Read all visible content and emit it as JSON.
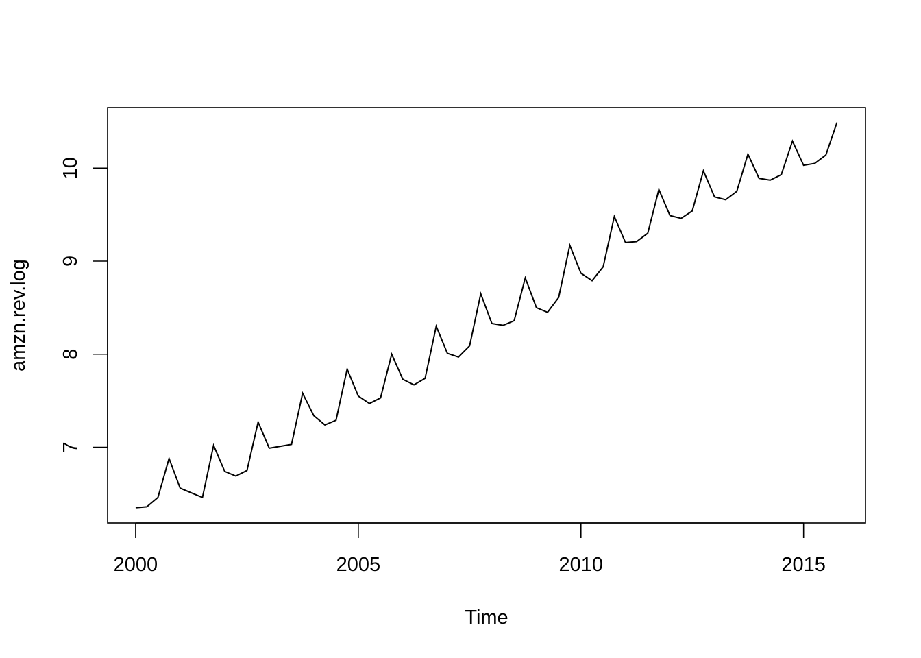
{
  "chart_data": {
    "type": "line",
    "title": "",
    "xlabel": "Time",
    "ylabel": "amzn.rev.log",
    "xlim": [
      1999.37,
      2016.39
    ],
    "ylim": [
      6.186,
      10.65
    ],
    "grid": false,
    "x_ticks": [
      2000,
      2005,
      2010,
      2015
    ],
    "x_tick_labels": [
      "2000",
      "2005",
      "2010",
      "2015"
    ],
    "y_ticks": [
      7,
      8,
      9,
      10
    ],
    "y_tick_labels": [
      "7",
      "8",
      "9",
      "10"
    ],
    "series": [
      {
        "line_color": "#000000",
        "x": [
          2000.0,
          2000.25,
          2000.5,
          2000.75,
          2001.0,
          2001.25,
          2001.5,
          2001.75,
          2002.0,
          2002.25,
          2002.5,
          2002.75,
          2003.0,
          2003.25,
          2003.5,
          2003.75,
          2004.0,
          2004.25,
          2004.5,
          2004.75,
          2005.0,
          2005.25,
          2005.5,
          2005.75,
          2006.0,
          2006.25,
          2006.5,
          2006.75,
          2007.0,
          2007.25,
          2007.5,
          2007.75,
          2008.0,
          2008.25,
          2008.5,
          2008.75,
          2009.0,
          2009.25,
          2009.5,
          2009.75,
          2010.0,
          2010.25,
          2010.5,
          2010.75,
          2011.0,
          2011.25,
          2011.5,
          2011.75,
          2012.0,
          2012.25,
          2012.5,
          2012.75,
          2013.0,
          2013.25,
          2013.5,
          2013.75,
          2014.0,
          2014.25,
          2014.5,
          2014.75,
          2015.0,
          2015.25,
          2015.5,
          2015.75
        ],
        "values": [
          6.35,
          6.36,
          6.46,
          6.88,
          6.56,
          6.51,
          6.46,
          7.02,
          6.74,
          6.69,
          6.75,
          7.27,
          6.99,
          7.01,
          7.03,
          7.58,
          7.34,
          7.24,
          7.29,
          7.84,
          7.55,
          7.47,
          7.53,
          8.0,
          7.73,
          7.67,
          7.74,
          8.3,
          8.01,
          7.97,
          8.09,
          8.65,
          8.33,
          8.31,
          8.36,
          8.82,
          8.5,
          8.45,
          8.61,
          9.17,
          8.87,
          8.79,
          8.94,
          9.48,
          9.2,
          9.21,
          9.3,
          9.77,
          9.49,
          9.46,
          9.54,
          9.97,
          9.69,
          9.66,
          9.75,
          10.15,
          9.89,
          9.87,
          9.93,
          10.29,
          10.03,
          10.05,
          10.14,
          10.49
        ]
      }
    ]
  }
}
